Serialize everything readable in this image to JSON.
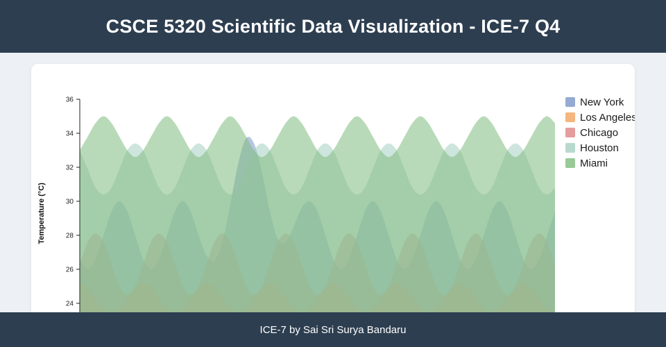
{
  "header": {
    "title": "CSCE 5320 Scientific Data Visualization - ICE-7 Q4"
  },
  "footer": {
    "text": "ICE-7 by Sai Sri Surya Bandaru"
  },
  "chart_data": {
    "type": "area",
    "ylabel": "Temperature (°C)",
    "ylim": [
      24,
      36
    ],
    "yticks": [
      36,
      34,
      32,
      30,
      28,
      26,
      24
    ],
    "grid": false,
    "legend_position": "upper right",
    "fill_opacity": 0.55,
    "series": [
      {
        "name": "New York",
        "color": "#7b96c8",
        "values": [
          26.6,
          26.0,
          26.6,
          28.0,
          29.4,
          30.0,
          29.4,
          28.0,
          26.6,
          26.0,
          26.6,
          28.0,
          29.4,
          30.0,
          29.4,
          28.0,
          26.8,
          26.5,
          27.6,
          29.8,
          32.2,
          33.7,
          33.4,
          31.7,
          29.4,
          27.8,
          27.6,
          28.5,
          29.6,
          30.0,
          29.4,
          28.0,
          26.6,
          26.0,
          26.6,
          28.0,
          29.4,
          30.0,
          29.4,
          28.0,
          26.6,
          26.0,
          26.6,
          28.0,
          29.4,
          30.0,
          29.4,
          28.0,
          26.6,
          26.0,
          26.6,
          28.0,
          29.4,
          30.0,
          29.4,
          28.0,
          26.6,
          26.0,
          26.6,
          28.0,
          29.4
        ]
      },
      {
        "name": "Los Angeles",
        "color": "#f3a35f",
        "values": [
          25.2,
          24.9,
          24.3,
          23.7,
          23.4,
          23.7,
          24.3,
          24.9,
          25.2,
          24.9,
          24.3,
          23.7,
          23.4,
          23.7,
          24.3,
          24.9,
          25.2,
          24.9,
          24.3,
          23.7,
          23.4,
          23.7,
          24.3,
          24.9,
          25.2,
          24.9,
          24.3,
          23.7,
          23.4,
          23.7,
          24.3,
          24.9,
          25.2,
          24.9,
          24.3,
          23.7,
          23.4,
          23.7,
          24.3,
          24.9,
          25.2,
          24.9,
          24.3,
          23.7,
          23.4,
          23.7,
          24.3,
          24.9,
          25.2,
          24.9,
          24.3,
          23.7,
          23.4,
          23.7,
          24.3,
          24.9,
          25.2,
          24.9,
          24.3,
          23.7,
          23.4
        ]
      },
      {
        "name": "Chicago",
        "color": "#de8383",
        "values": [
          26.3,
          27.6,
          28.1,
          27.6,
          26.3,
          25.0,
          24.5,
          25.0,
          26.3,
          27.6,
          28.1,
          27.6,
          26.3,
          25.0,
          24.5,
          25.0,
          26.3,
          27.6,
          28.1,
          27.6,
          26.3,
          25.0,
          24.5,
          25.0,
          26.3,
          27.6,
          28.1,
          27.6,
          26.3,
          25.0,
          24.5,
          25.0,
          26.3,
          27.6,
          28.1,
          27.6,
          26.3,
          25.0,
          24.5,
          25.0,
          26.3,
          27.6,
          28.1,
          27.6,
          26.3,
          25.0,
          24.5,
          25.0,
          26.3,
          27.6,
          28.1,
          27.6,
          26.3,
          25.0,
          24.5,
          25.0,
          26.3,
          27.6,
          28.1,
          27.6,
          26.3
        ]
      },
      {
        "name": "Houston",
        "color": "#a6cfc2",
        "values": [
          33.0,
          31.9,
          30.8,
          30.4,
          30.8,
          31.9,
          33.0,
          33.4,
          33.0,
          31.9,
          30.8,
          30.4,
          30.8,
          31.9,
          33.0,
          33.4,
          33.0,
          31.9,
          30.8,
          30.4,
          30.8,
          31.9,
          33.0,
          33.4,
          33.0,
          31.9,
          30.8,
          30.4,
          30.8,
          31.9,
          33.0,
          33.4,
          33.0,
          31.9,
          30.8,
          30.4,
          30.8,
          31.9,
          33.0,
          33.4,
          33.0,
          31.9,
          30.8,
          30.4,
          30.8,
          31.9,
          33.0,
          33.4,
          33.0,
          31.9,
          30.8,
          30.4,
          30.8,
          31.9,
          33.0,
          33.4,
          33.0,
          31.9,
          30.8,
          30.4,
          30.8
        ]
      },
      {
        "name": "Miami",
        "color": "#7fbb7d",
        "values": [
          33.0,
          33.8,
          34.6,
          35.0,
          34.6,
          33.8,
          33.0,
          32.6,
          33.0,
          33.8,
          34.6,
          35.0,
          34.6,
          33.8,
          33.0,
          32.6,
          33.0,
          33.8,
          34.6,
          35.0,
          34.6,
          33.8,
          33.0,
          32.6,
          33.0,
          33.8,
          34.6,
          35.0,
          34.6,
          33.8,
          33.0,
          32.6,
          33.0,
          33.8,
          34.6,
          35.0,
          34.6,
          33.8,
          33.0,
          32.6,
          33.0,
          33.8,
          34.6,
          35.0,
          34.6,
          33.8,
          33.0,
          32.6,
          33.0,
          33.8,
          34.6,
          35.0,
          34.6,
          33.8,
          33.0,
          32.6,
          33.0,
          33.8,
          34.6,
          35.0,
          34.6
        ]
      }
    ]
  }
}
